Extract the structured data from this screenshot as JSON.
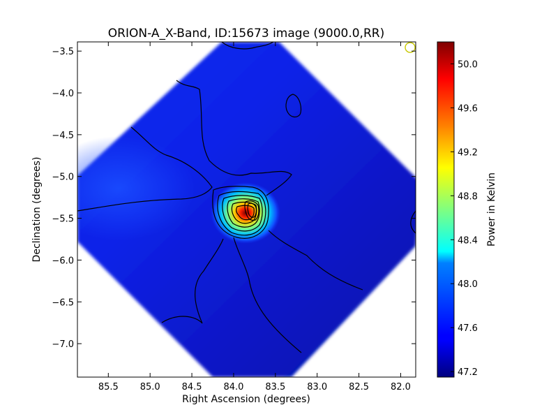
{
  "chart_data": {
    "type": "heatmap",
    "title": "ORION-A_X-Band, ID:15673 image (9000.0,RR)",
    "xlabel": "Right Ascension (degrees)",
    "ylabel": "Declination (degrees)",
    "colorbar_label": "Power in Kelvin",
    "xlim": [
      85.87,
      81.82
    ],
    "ylim": [
      -7.4,
      -3.39
    ],
    "x_ticks": [
      85.5,
      85.0,
      84.5,
      84.0,
      83.5,
      83.0,
      82.5,
      82.0
    ],
    "x_tick_labels": [
      "85.5",
      "85.0",
      "84.5",
      "84.0",
      "83.5",
      "83.0",
      "82.5",
      "82.0"
    ],
    "y_ticks": [
      -3.5,
      -4.0,
      -4.5,
      -5.0,
      -5.5,
      -6.0,
      -6.5,
      -7.0
    ],
    "y_tick_labels": [
      "−3.5",
      "−4.0",
      "−4.5",
      "−5.0",
      "−5.5",
      "−6.0",
      "−6.5",
      "−7.0"
    ],
    "colorbar_range": [
      47.15,
      50.2
    ],
    "colorbar_ticks": [
      47.2,
      47.6,
      48.0,
      48.4,
      48.8,
      49.2,
      49.6,
      50.0
    ],
    "colorbar_tick_labels": [
      "47.2",
      "47.6",
      "48.0",
      "48.4",
      "48.8",
      "49.2",
      "49.6",
      "50.0"
    ],
    "colormap": "jet",
    "background_level": 47.5,
    "peak": {
      "ra": 83.78,
      "dec": -5.38,
      "value": 50.15
    },
    "contours": "black",
    "beam_marker": {
      "ra": 81.9,
      "dec": -3.46,
      "color": "#c8c800"
    },
    "grid": false
  }
}
